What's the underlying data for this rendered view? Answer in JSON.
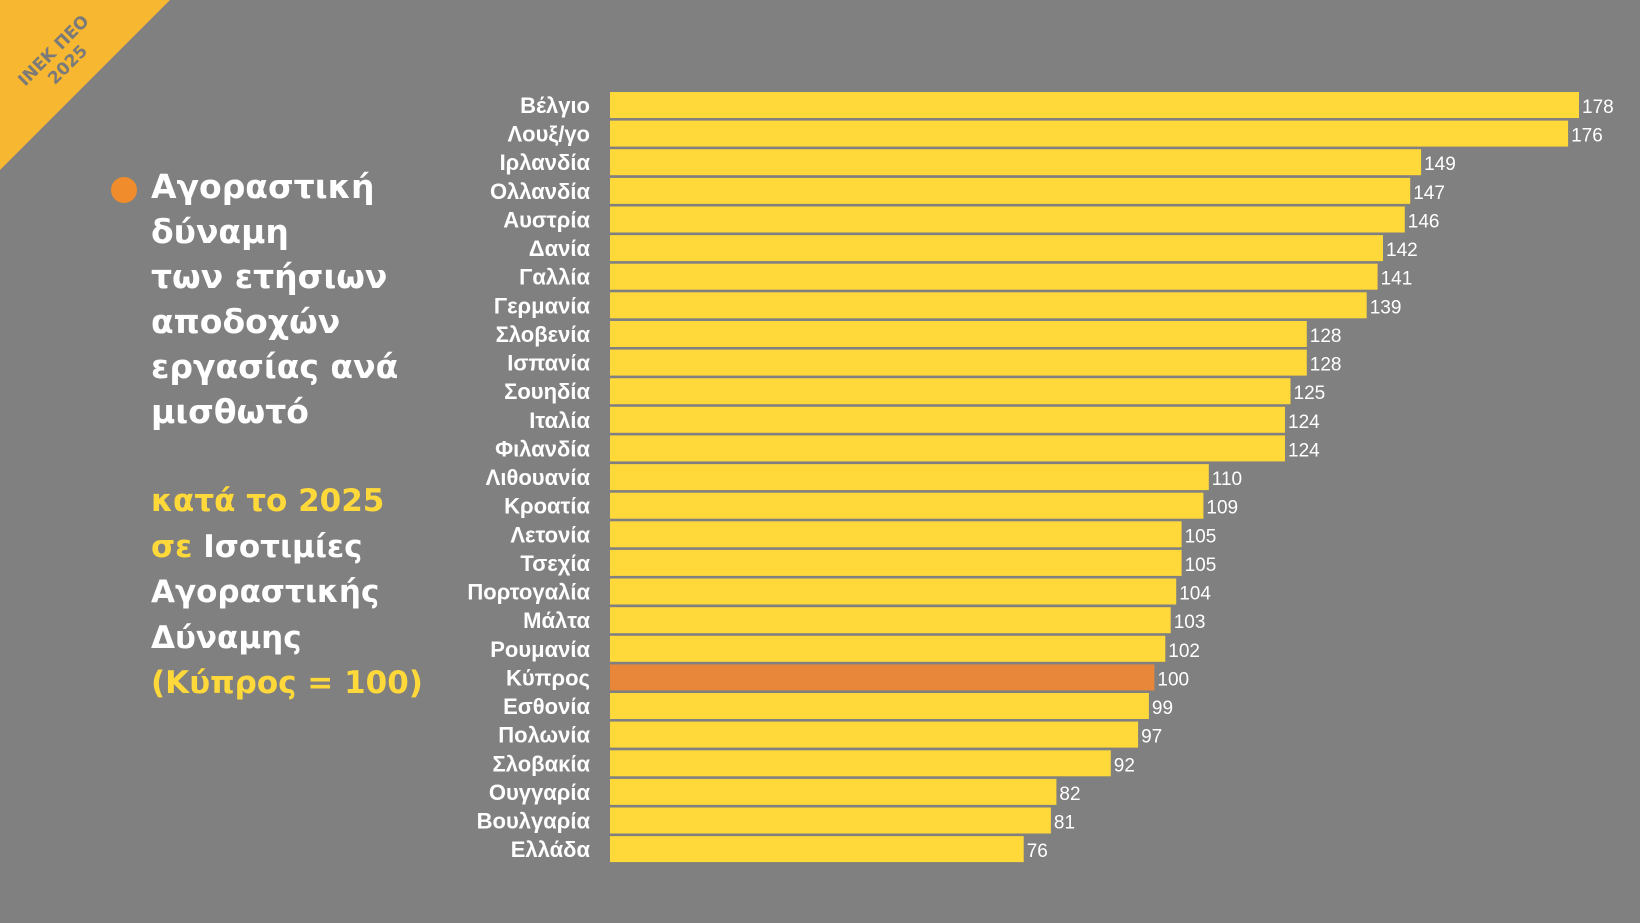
{
  "badge": {
    "line1": "ΙΝΕΚ ΠΕΟ",
    "line2": "2025"
  },
  "description": {
    "lines": [
      "Αγοραστική",
      "δύναμη",
      "των ετήσιων",
      "αποδοχών",
      "εργασίας ανά",
      "μισθωτό"
    ]
  },
  "subtitle": {
    "line1": "κατά το 2025",
    "line2_yellow": "σε",
    "line2_white": " Ισοτιμίες",
    "line3": "Αγοραστικής",
    "line4": "Δύναμης",
    "line5": "(Κύπρος = 100)"
  },
  "colors": {
    "background": "#808080",
    "bar": "#ffd83a",
    "highlight_bar": "#e8873a",
    "accent_dot": "#f08c2b",
    "corner_badge": "#f7b731",
    "yellow_text": "#ffd83a"
  },
  "chart_data": {
    "type": "bar",
    "orientation": "horizontal",
    "categories": [
      "Βέλγιο",
      "Λουξ/γο",
      "Ιρλανδία",
      "Ολλανδία",
      "Αυστρία",
      "Δανία",
      "Γαλλία",
      "Γερμανία",
      "Σλοβενία",
      "Ισπανία",
      "Σουηδία",
      "Ιταλία",
      "Φιλανδία",
      "Λιθουανία",
      "Κροατία",
      "Λετονία",
      "Τσεχία",
      "Πορτογαλία",
      "Μάλτα",
      "Ρουμανία",
      "Κύπρος",
      "Εσθονία",
      "Πολωνία",
      "Σλοβακία",
      "Ουγγαρία",
      "Βουλγαρία",
      "Ελλάδα"
    ],
    "values": [
      178,
      176,
      149,
      147,
      146,
      142,
      141,
      139,
      128,
      128,
      125,
      124,
      124,
      110,
      109,
      105,
      105,
      104,
      103,
      102,
      100,
      99,
      97,
      92,
      82,
      81,
      76
    ],
    "highlight": "Κύπρος",
    "xlim": [
      0,
      178
    ],
    "grid": false,
    "legend": "none"
  }
}
